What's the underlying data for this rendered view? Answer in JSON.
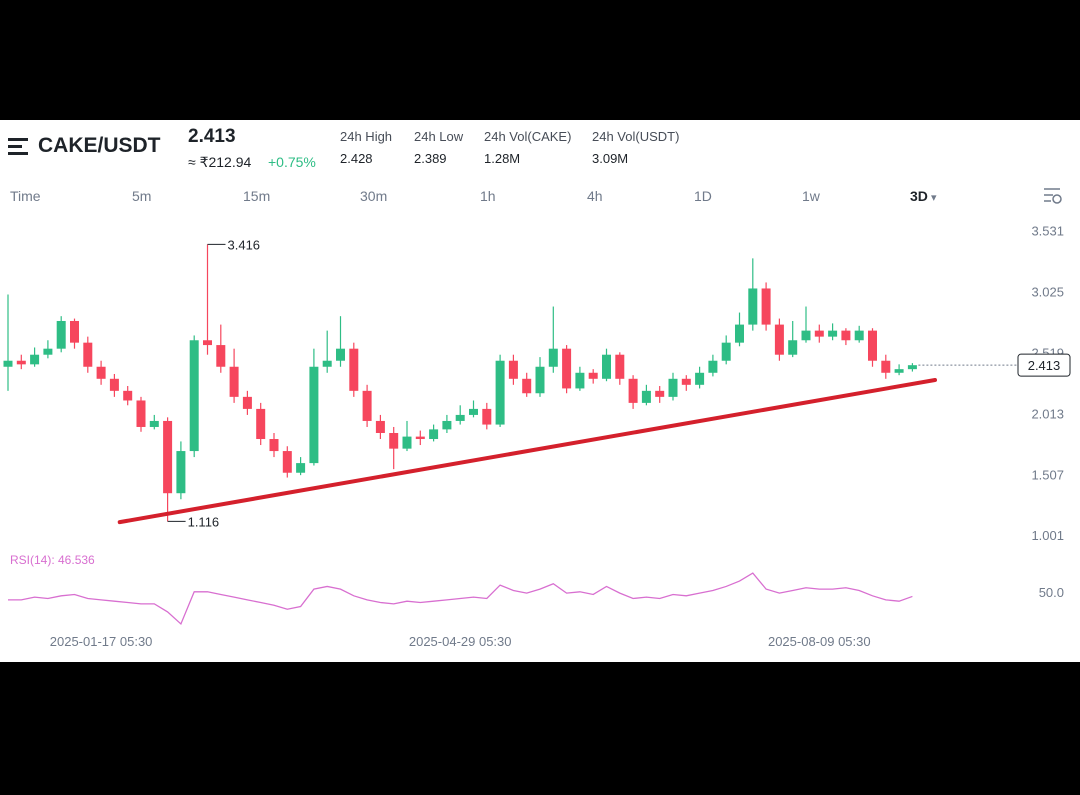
{
  "header": {
    "pair": "CAKE/USDT",
    "price": "2.413",
    "fiat": "≈ ₹212.94",
    "change": "+0.75%",
    "stats": [
      {
        "label": "24h High",
        "value": "2.428"
      },
      {
        "label": "24h Low",
        "value": "2.389"
      },
      {
        "label": "24h Vol(CAKE)",
        "value": "1.28M"
      },
      {
        "label": "24h Vol(USDT)",
        "value": "3.09M"
      }
    ]
  },
  "timeframes": {
    "items": [
      "Time",
      "5m",
      "15m",
      "30m",
      "1h",
      "4h",
      "1D",
      "1w",
      "3D"
    ],
    "selected": 8
  },
  "chart_data": {
    "type": "candlestick",
    "up_color": "#2ebd85",
    "down_color": "#f6465d",
    "open": [
      2.4,
      2.45,
      2.42,
      2.5,
      2.55,
      2.78,
      2.6,
      2.4,
      2.3,
      2.2,
      2.12,
      1.9,
      1.95,
      1.35,
      1.7,
      2.62,
      2.58,
      2.4,
      2.15,
      2.05,
      1.8,
      1.7,
      1.52,
      1.6,
      2.4,
      2.45,
      2.55,
      2.2,
      1.95,
      1.85,
      1.72,
      1.82,
      1.8,
      1.88,
      1.95,
      2.0,
      2.05,
      1.92,
      2.45,
      2.3,
      2.18,
      2.4,
      2.55,
      2.22,
      2.35,
      2.3,
      2.5,
      2.3,
      2.1,
      2.2,
      2.15,
      2.3,
      2.25,
      2.35,
      2.45,
      2.6,
      2.75,
      3.05,
      2.75,
      2.5,
      2.62,
      2.7,
      2.65,
      2.7,
      2.62,
      2.7,
      2.45,
      2.35,
      2.38
    ],
    "high": [
      3.0,
      2.5,
      2.56,
      2.62,
      2.82,
      2.8,
      2.65,
      2.45,
      2.34,
      2.24,
      2.15,
      2.0,
      1.98,
      1.78,
      2.66,
      3.416,
      2.75,
      2.55,
      2.2,
      2.1,
      1.85,
      1.74,
      1.65,
      2.55,
      2.7,
      2.82,
      2.6,
      2.25,
      2.0,
      1.9,
      1.95,
      1.87,
      1.92,
      2.0,
      2.08,
      2.12,
      2.1,
      2.5,
      2.5,
      2.35,
      2.48,
      2.9,
      2.58,
      2.4,
      2.38,
      2.55,
      2.52,
      2.33,
      2.25,
      2.24,
      2.35,
      2.33,
      2.4,
      2.5,
      2.66,
      2.85,
      3.3,
      3.1,
      2.8,
      2.78,
      2.9,
      2.75,
      2.76,
      2.72,
      2.74,
      2.72,
      2.5,
      2.42,
      2.43
    ],
    "low": [
      2.2,
      2.38,
      2.4,
      2.47,
      2.52,
      2.55,
      2.35,
      2.25,
      2.15,
      2.08,
      1.86,
      1.88,
      1.116,
      1.3,
      1.65,
      2.5,
      2.35,
      2.1,
      2.0,
      1.75,
      1.65,
      1.48,
      1.5,
      1.58,
      2.35,
      2.4,
      2.15,
      1.9,
      1.8,
      1.55,
      1.7,
      1.75,
      1.78,
      1.85,
      1.92,
      1.98,
      1.88,
      1.9,
      2.25,
      2.15,
      2.15,
      2.35,
      2.18,
      2.2,
      2.26,
      2.28,
      2.25,
      2.05,
      2.08,
      2.1,
      2.12,
      2.2,
      2.22,
      2.32,
      2.42,
      2.57,
      2.7,
      2.7,
      2.45,
      2.48,
      2.6,
      2.6,
      2.62,
      2.58,
      2.6,
      2.4,
      2.3,
      2.33,
      2.36
    ],
    "close": [
      2.45,
      2.42,
      2.5,
      2.55,
      2.78,
      2.6,
      2.4,
      2.3,
      2.2,
      2.12,
      1.9,
      1.95,
      1.35,
      1.7,
      2.62,
      2.58,
      2.4,
      2.15,
      2.05,
      1.8,
      1.7,
      1.52,
      1.6,
      2.4,
      2.45,
      2.55,
      2.2,
      1.95,
      1.85,
      1.72,
      1.82,
      1.8,
      1.88,
      1.95,
      2.0,
      2.05,
      1.92,
      2.45,
      2.3,
      2.18,
      2.4,
      2.55,
      2.22,
      2.35,
      2.3,
      2.5,
      2.3,
      2.1,
      2.2,
      2.15,
      2.3,
      2.25,
      2.35,
      2.45,
      2.6,
      2.75,
      3.05,
      2.75,
      2.5,
      2.62,
      2.7,
      2.65,
      2.7,
      2.62,
      2.7,
      2.45,
      2.35,
      2.38,
      2.413
    ],
    "ylim": [
      0.92,
      3.66
    ],
    "yticks": [
      3.531,
      3.025,
      2.519,
      2.013,
      1.507,
      1.001
    ],
    "xticks": [
      {
        "value": 7,
        "label": "2025-01-17 05:30"
      },
      {
        "value": 34,
        "label": "2025-04-29 05:30"
      },
      {
        "value": 61,
        "label": "2025-08-09 05:30"
      }
    ],
    "marked_high": 15,
    "marked_low": 12,
    "trendline": {
      "color": "#d4202c",
      "start": [
        8.4,
        1.11
      ],
      "end": [
        69.7,
        2.29
      ]
    },
    "rsi": {
      "label": "RSI(14): 46.536",
      "color": "#d86fd0",
      "ylim": [
        20,
        70
      ],
      "yticks": [
        {
          "value": 50,
          "label": "50.0"
        }
      ],
      "values": [
        44,
        44,
        46,
        45,
        47,
        48,
        45,
        44,
        43,
        42,
        41,
        41,
        35,
        26,
        50,
        50,
        48,
        46,
        44,
        42,
        40,
        37,
        39,
        52,
        54,
        52,
        47,
        44,
        42,
        41,
        43,
        42,
        43,
        44,
        45,
        46,
        45,
        55,
        51,
        49,
        52,
        56,
        49,
        50,
        48,
        54,
        49,
        45,
        46,
        45,
        48,
        47,
        49,
        51,
        54,
        58,
        64,
        52,
        49,
        51,
        53,
        52,
        52,
        53,
        51,
        47,
        44,
        43,
        46.536
      ]
    }
  }
}
